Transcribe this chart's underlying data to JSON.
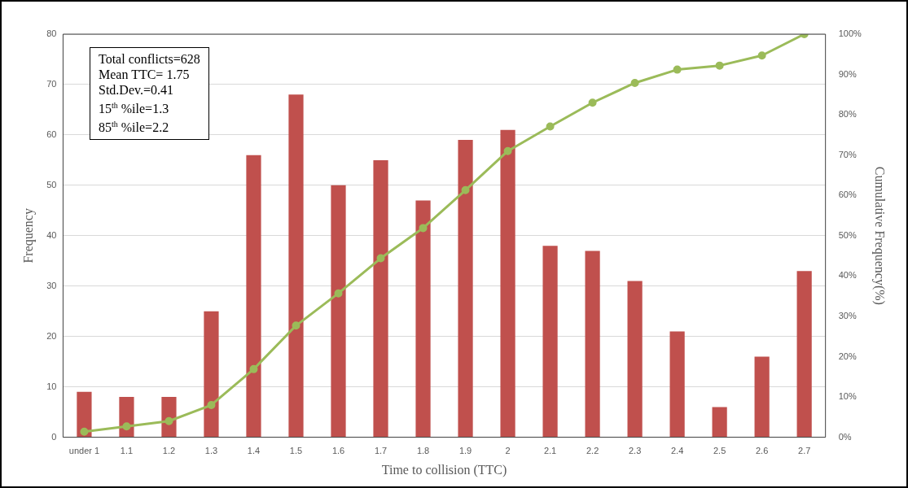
{
  "chart_data": {
    "type": "bar",
    "xlabel": "Time to collision (TTC)",
    "ylabel": "Frequency",
    "y2label": "Cumulative Frequency(%)",
    "categories": [
      "under 1",
      "1.1",
      "1.2",
      "1.3",
      "1.4",
      "1.5",
      "1.6",
      "1.7",
      "1.8",
      "1.9",
      "2",
      "2.1",
      "2.2",
      "2.3",
      "2.4",
      "2.5",
      "2.6",
      "2.7"
    ],
    "series": [
      {
        "color": "#c0504d",
        "values": [
          9,
          8,
          8,
          25,
          56,
          68,
          50,
          55,
          47,
          59,
          61,
          38,
          37,
          31,
          21,
          6,
          16,
          33
        ]
      },
      {
        "type": "line",
        "axis": "y2",
        "color": "#9bbb59",
        "values": [
          1.4,
          2.7,
          4.0,
          8.0,
          16.9,
          27.7,
          35.7,
          44.4,
          51.9,
          61.3,
          71.0,
          77.1,
          83.0,
          87.9,
          91.2,
          92.2,
          94.7,
          100
        ]
      }
    ],
    "ylim": [
      0,
      80
    ],
    "yticks": [
      0,
      10,
      20,
      30,
      40,
      50,
      60,
      70,
      80
    ],
    "y2lim": [
      0,
      100
    ],
    "y2ticks": [
      {
        "value": 0,
        "label": "0%"
      },
      {
        "value": 10,
        "label": "10%"
      },
      {
        "value": 20,
        "label": "20%"
      },
      {
        "value": 30,
        "label": "30%"
      },
      {
        "value": 40,
        "label": "40%"
      },
      {
        "value": 50,
        "label": "50%"
      },
      {
        "value": 60,
        "label": "60%"
      },
      {
        "value": 70,
        "label": "70%"
      },
      {
        "value": 80,
        "label": "80%"
      },
      {
        "value": 90,
        "label": "90%"
      },
      {
        "value": 100,
        "label": "100%"
      }
    ],
    "grid": "y",
    "marker": "circle",
    "annotations": [
      "Total conflicts=628",
      "Mean TTC= 1.75",
      "Std.Dev.=0.41",
      "15$^{th}$ %ile=1.3",
      "85$^{th}$ %ile=2.2"
    ]
  }
}
